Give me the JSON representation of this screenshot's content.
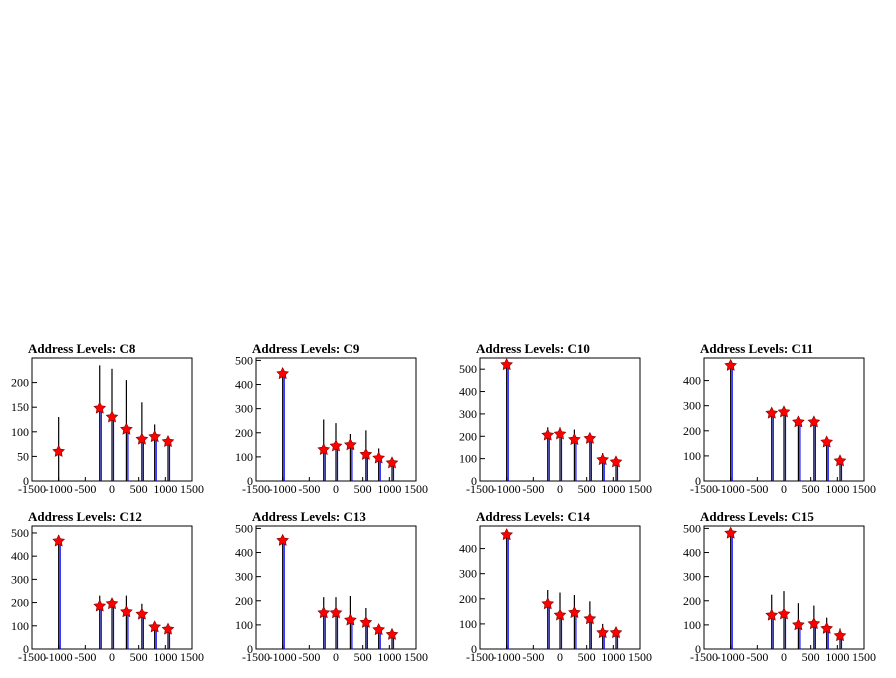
{
  "chart_data": [
    {
      "type": "bar",
      "title": "Address Levels: C8",
      "xlim": [
        -1500,
        1500
      ],
      "ylim": [
        0,
        250
      ],
      "yticks": [
        0,
        50,
        100,
        150,
        200
      ],
      "xticks": [
        -1500,
        -1000,
        -500,
        0,
        500,
        1000,
        1500
      ],
      "xtick_labels": [
        "-1500",
        "-1000",
        "-500",
        "0",
        "500",
        "1000",
        "1500"
      ],
      "black_spikes": [
        [
          -1000,
          130
        ],
        [
          -230,
          235
        ],
        [
          0,
          228
        ],
        [
          270,
          205
        ],
        [
          560,
          160
        ],
        [
          800,
          115
        ],
        [
          1050,
          90
        ]
      ],
      "blue_spikes": [
        [
          -1000,
          0
        ],
        [
          -230,
          145
        ],
        [
          0,
          125
        ],
        [
          270,
          100
        ],
        [
          560,
          85
        ],
        [
          800,
          85
        ],
        [
          1050,
          75
        ]
      ],
      "markers": [
        [
          -1000,
          60
        ],
        [
          -230,
          148
        ],
        [
          0,
          130
        ],
        [
          270,
          105
        ],
        [
          560,
          85
        ],
        [
          800,
          90
        ],
        [
          1050,
          80
        ]
      ]
    },
    {
      "type": "bar",
      "title": "Address Levels: C9",
      "xlim": [
        -1500,
        1500
      ],
      "ylim": [
        0,
        510
      ],
      "yticks": [
        0,
        100,
        200,
        300,
        400,
        500
      ],
      "xticks": [
        -1500,
        -1000,
        -500,
        0,
        500,
        1000,
        1500
      ],
      "xtick_labels": [
        "-1500",
        "-1000",
        "-500",
        "0",
        "500",
        "1000",
        "1500"
      ],
      "black_spikes": [
        [
          -1000,
          460
        ],
        [
          -230,
          255
        ],
        [
          0,
          240
        ],
        [
          270,
          195
        ],
        [
          560,
          210
        ],
        [
          800,
          135
        ],
        [
          1050,
          90
        ]
      ],
      "blue_spikes": [
        [
          -1000,
          450
        ],
        [
          -230,
          130
        ],
        [
          0,
          145
        ],
        [
          270,
          145
        ],
        [
          560,
          110
        ],
        [
          800,
          90
        ],
        [
          1050,
          75
        ]
      ],
      "markers": [
        [
          -1000,
          445
        ],
        [
          -230,
          130
        ],
        [
          0,
          145
        ],
        [
          270,
          150
        ],
        [
          560,
          110
        ],
        [
          800,
          95
        ],
        [
          1050,
          75
        ]
      ]
    },
    {
      "type": "bar",
      "title": "Address Levels: C10",
      "xlim": [
        -1500,
        1500
      ],
      "ylim": [
        0,
        550
      ],
      "yticks": [
        0,
        100,
        200,
        300,
        400,
        500
      ],
      "xticks": [
        -1500,
        -1000,
        -500,
        0,
        500,
        1000,
        1500
      ],
      "xtick_labels": [
        "-1500",
        "-1000",
        "-500",
        "0",
        "500",
        "1000",
        "1500"
      ],
      "black_spikes": [
        [
          -1000,
          525
        ],
        [
          -230,
          240
        ],
        [
          0,
          240
        ],
        [
          270,
          230
        ],
        [
          560,
          190
        ],
        [
          800,
          125
        ],
        [
          1050,
          90
        ]
      ],
      "blue_spikes": [
        [
          -1000,
          520
        ],
        [
          -230,
          200
        ],
        [
          0,
          205
        ],
        [
          270,
          180
        ],
        [
          560,
          190
        ],
        [
          800,
          95
        ],
        [
          1050,
          85
        ]
      ],
      "markers": [
        [
          -1000,
          520
        ],
        [
          -230,
          205
        ],
        [
          0,
          210
        ],
        [
          270,
          185
        ],
        [
          560,
          190
        ],
        [
          800,
          95
        ],
        [
          1050,
          85
        ]
      ]
    },
    {
      "type": "bar",
      "title": "Address Levels: C11",
      "xlim": [
        -1500,
        1500
      ],
      "ylim": [
        0,
        490
      ],
      "yticks": [
        0,
        100,
        200,
        300,
        400
      ],
      "xticks": [
        -1500,
        -1000,
        -500,
        0,
        500,
        1000,
        1500
      ],
      "xtick_labels": [
        "-1500",
        "-1000",
        "-500",
        "0",
        "500",
        "1000",
        "1500"
      ],
      "black_spikes": [
        [
          -1000,
          470
        ],
        [
          -230,
          280
        ],
        [
          0,
          270
        ],
        [
          270,
          230
        ],
        [
          560,
          230
        ],
        [
          800,
          165
        ],
        [
          1050,
          90
        ]
      ],
      "blue_spikes": [
        [
          -1000,
          460
        ],
        [
          -230,
          265
        ],
        [
          0,
          270
        ],
        [
          270,
          235
        ],
        [
          560,
          230
        ],
        [
          800,
          150
        ],
        [
          1050,
          80
        ]
      ],
      "markers": [
        [
          -1000,
          460
        ],
        [
          -230,
          270
        ],
        [
          0,
          275
        ],
        [
          270,
          235
        ],
        [
          560,
          235
        ],
        [
          800,
          155
        ],
        [
          1050,
          80
        ]
      ]
    },
    {
      "type": "bar",
      "title": "Address Levels: C12",
      "xlim": [
        -1500,
        1500
      ],
      "ylim": [
        0,
        530
      ],
      "yticks": [
        0,
        100,
        200,
        300,
        400,
        500
      ],
      "xticks": [
        -1500,
        -1000,
        -500,
        0,
        500,
        1000,
        1500
      ],
      "xtick_labels": [
        "-1500",
        "-1000",
        "-500",
        "0",
        "500",
        "1000",
        "1500"
      ],
      "black_spikes": [
        [
          -1000,
          490
        ],
        [
          -230,
          230
        ],
        [
          0,
          210
        ],
        [
          270,
          230
        ],
        [
          560,
          195
        ],
        [
          800,
          115
        ],
        [
          1050,
          85
        ]
      ],
      "blue_spikes": [
        [
          -1000,
          470
        ],
        [
          -230,
          185
        ],
        [
          0,
          195
        ],
        [
          270,
          160
        ],
        [
          560,
          150
        ],
        [
          800,
          95
        ],
        [
          1050,
          80
        ]
      ],
      "markers": [
        [
          -1000,
          465
        ],
        [
          -230,
          185
        ],
        [
          0,
          195
        ],
        [
          270,
          160
        ],
        [
          560,
          150
        ],
        [
          800,
          95
        ],
        [
          1050,
          85
        ]
      ]
    },
    {
      "type": "bar",
      "title": "Address Levels: C13",
      "xlim": [
        -1500,
        1500
      ],
      "ylim": [
        0,
        510
      ],
      "yticks": [
        0,
        100,
        200,
        300,
        400,
        500
      ],
      "xticks": [
        -1500,
        -1000,
        -500,
        0,
        500,
        1000,
        1500
      ],
      "xtick_labels": [
        "-1500",
        "-1000",
        "-500",
        "0",
        "500",
        "1000",
        "1500"
      ],
      "black_spikes": [
        [
          -1000,
          460
        ],
        [
          -230,
          215
        ],
        [
          0,
          215
        ],
        [
          270,
          220
        ],
        [
          560,
          170
        ],
        [
          800,
          95
        ],
        [
          1050,
          75
        ]
      ],
      "blue_spikes": [
        [
          -1000,
          450
        ],
        [
          -230,
          150
        ],
        [
          0,
          150
        ],
        [
          270,
          120
        ],
        [
          560,
          110
        ],
        [
          800,
          80
        ],
        [
          1050,
          60
        ]
      ],
      "markers": [
        [
          -1000,
          450
        ],
        [
          -230,
          150
        ],
        [
          0,
          150
        ],
        [
          270,
          120
        ],
        [
          560,
          110
        ],
        [
          800,
          80
        ],
        [
          1050,
          60
        ]
      ]
    },
    {
      "type": "bar",
      "title": "Address Levels: C14",
      "xlim": [
        -1500,
        1500
      ],
      "ylim": [
        0,
        490
      ],
      "yticks": [
        0,
        100,
        200,
        300,
        400
      ],
      "xticks": [
        -1500,
        -1000,
        -500,
        0,
        500,
        1000,
        1500
      ],
      "xtick_labels": [
        "-1500",
        "-1000",
        "-500",
        "0",
        "500",
        "1000",
        "1500"
      ],
      "black_spikes": [
        [
          -1000,
          460
        ],
        [
          -230,
          235
        ],
        [
          0,
          225
        ],
        [
          270,
          215
        ],
        [
          560,
          190
        ],
        [
          800,
          100
        ],
        [
          1050,
          75
        ]
      ],
      "blue_spikes": [
        [
          -1000,
          450
        ],
        [
          -230,
          175
        ],
        [
          0,
          135
        ],
        [
          270,
          145
        ],
        [
          560,
          125
        ],
        [
          800,
          65
        ],
        [
          1050,
          60
        ]
      ],
      "markers": [
        [
          -1000,
          455
        ],
        [
          -230,
          180
        ],
        [
          0,
          135
        ],
        [
          270,
          145
        ],
        [
          560,
          120
        ],
        [
          800,
          65
        ],
        [
          1050,
          65
        ]
      ]
    },
    {
      "type": "bar",
      "title": "Address Levels: C15",
      "xlim": [
        -1500,
        1500
      ],
      "ylim": [
        0,
        510
      ],
      "yticks": [
        0,
        100,
        200,
        300,
        400,
        500
      ],
      "xticks": [
        -1500,
        -1000,
        -500,
        0,
        500,
        1000,
        1500
      ],
      "xtick_labels": [
        "-1500",
        "-1000",
        "-500",
        "0",
        "500",
        "1000",
        "1500"
      ],
      "black_spikes": [
        [
          -1000,
          490
        ],
        [
          -230,
          225
        ],
        [
          0,
          240
        ],
        [
          270,
          190
        ],
        [
          560,
          180
        ],
        [
          800,
          130
        ],
        [
          1050,
          85
        ]
      ],
      "blue_spikes": [
        [
          -1000,
          470
        ],
        [
          -230,
          140
        ],
        [
          0,
          145
        ],
        [
          270,
          100
        ],
        [
          560,
          110
        ],
        [
          800,
          85
        ],
        [
          1050,
          55
        ]
      ],
      "markers": [
        [
          -1000,
          480
        ],
        [
          -230,
          140
        ],
        [
          0,
          145
        ],
        [
          270,
          100
        ],
        [
          560,
          105
        ],
        [
          800,
          85
        ],
        [
          1050,
          55
        ]
      ]
    }
  ],
  "colors": {
    "frame": "#000000",
    "black_series": "#000000",
    "blue_series": "#0000ff",
    "marker_fill": "#ff0000",
    "marker_edge": "#800000"
  }
}
